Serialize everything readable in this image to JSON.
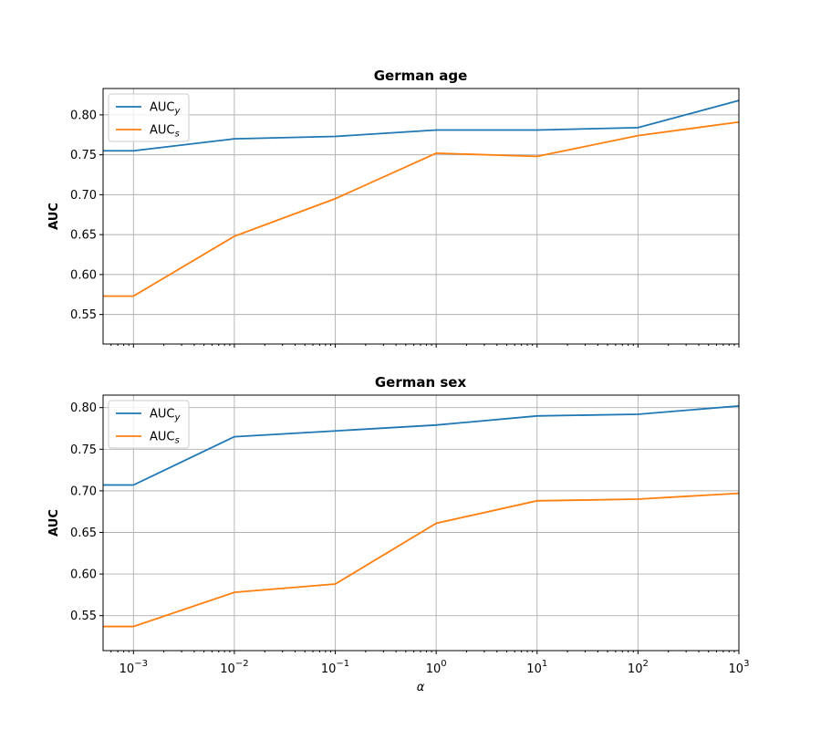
{
  "chart_data": [
    {
      "type": "line",
      "title": "German age",
      "ylabel": "AUC",
      "xlabel": "",
      "xscale": "log",
      "xlim": [
        0.0005,
        1000
      ],
      "ylim": [
        0.513,
        0.833
      ],
      "yticks": [
        0.55,
        0.6,
        0.65,
        0.7,
        0.75,
        0.8
      ],
      "ytick_labels": [
        "0.55",
        "0.60",
        "0.65",
        "0.70",
        "0.75",
        "0.80"
      ],
      "xticks": [
        0.001,
        0.01,
        0.1,
        1,
        10,
        100,
        1000
      ],
      "xtick_labels": [
        {
          "base": "10",
          "exp": "−3"
        },
        {
          "base": "10",
          "exp": "−2"
        },
        {
          "base": "10",
          "exp": "−1"
        },
        {
          "base": "10",
          "exp": "0"
        },
        {
          "base": "10",
          "exp": "1"
        },
        {
          "base": "10",
          "exp": "2"
        },
        {
          "base": "10",
          "exp": "3"
        }
      ],
      "show_xtick_labels": false,
      "grid": true,
      "legend": "upper-left",
      "x": [
        0.0005,
        0.001,
        0.01,
        0.1,
        1,
        10,
        100,
        1000
      ],
      "series": [
        {
          "name": "AUC",
          "sub": "y",
          "color": "#1f77b4",
          "values": [
            0.755,
            0.755,
            0.77,
            0.773,
            0.781,
            0.781,
            0.784,
            0.818
          ]
        },
        {
          "name": "AUC",
          "sub": "s",
          "color": "#ff7f0e",
          "values": [
            0.573,
            0.573,
            0.648,
            0.695,
            0.752,
            0.748,
            0.774,
            0.791
          ]
        }
      ]
    },
    {
      "type": "line",
      "title": "German sex",
      "ylabel": "AUC",
      "xlabel": "α",
      "xscale": "log",
      "xlim": [
        0.0005,
        1000
      ],
      "ylim": [
        0.508,
        0.815
      ],
      "yticks": [
        0.55,
        0.6,
        0.65,
        0.7,
        0.75,
        0.8
      ],
      "ytick_labels": [
        "0.55",
        "0.60",
        "0.65",
        "0.70",
        "0.75",
        "0.80"
      ],
      "xticks": [
        0.001,
        0.01,
        0.1,
        1,
        10,
        100,
        1000
      ],
      "xtick_labels": [
        {
          "base": "10",
          "exp": "−3"
        },
        {
          "base": "10",
          "exp": "−2"
        },
        {
          "base": "10",
          "exp": "−1"
        },
        {
          "base": "10",
          "exp": "0"
        },
        {
          "base": "10",
          "exp": "1"
        },
        {
          "base": "10",
          "exp": "2"
        },
        {
          "base": "10",
          "exp": "3"
        }
      ],
      "show_xtick_labels": true,
      "grid": true,
      "legend": "upper-left",
      "x": [
        0.0005,
        0.001,
        0.01,
        0.1,
        1,
        10,
        100,
        1000
      ],
      "series": [
        {
          "name": "AUC",
          "sub": "y",
          "color": "#1f77b4",
          "values": [
            0.707,
            0.707,
            0.765,
            0.772,
            0.779,
            0.79,
            0.792,
            0.802
          ]
        },
        {
          "name": "AUC",
          "sub": "s",
          "color": "#ff7f0e",
          "values": [
            0.537,
            0.537,
            0.578,
            0.588,
            0.661,
            0.688,
            0.69,
            0.697
          ]
        }
      ]
    }
  ]
}
